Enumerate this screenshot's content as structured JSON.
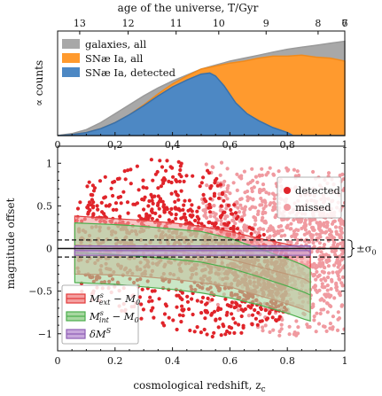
{
  "chart_data": [
    {
      "type": "area",
      "xlabel": "",
      "ylabel": "∝ counts",
      "top_axis_label": "age of the universe, T/Gyr",
      "top_ticks": [
        {
          "label": "13",
          "z": 0.04
        },
        {
          "label": "12",
          "z": 0.14
        },
        {
          "label": "11",
          "z": 0.26
        },
        {
          "label": "10",
          "z": 0.39
        },
        {
          "label": "9",
          "z": 0.57
        },
        {
          "label": "8",
          "z": 0.83
        },
        {
          "label": "7",
          "z": 1.21
        },
        {
          "label": "6",
          "z": 1.9
        }
      ],
      "xlim": [
        0,
        1
      ],
      "x_ticks": [
        0,
        0.2,
        0.4,
        0.6,
        0.8,
        1
      ],
      "x_tick_labels": [
        "0",
        "0.2",
        "0.4",
        "0.6",
        "0.8",
        "1"
      ],
      "legend_position": "top-left",
      "series": [
        {
          "name": "galaxies, all",
          "color": "#a8a8a8",
          "x": [
            0,
            0.05,
            0.1,
            0.15,
            0.2,
            0.25,
            0.3,
            0.35,
            0.4,
            0.45,
            0.5,
            0.55,
            0.6,
            0.65,
            0.7,
            0.75,
            0.8,
            0.85,
            0.9,
            0.95,
            1.0
          ],
          "y": [
            0.0,
            0.02,
            0.06,
            0.13,
            0.22,
            0.31,
            0.4,
            0.48,
            0.55,
            0.61,
            0.67,
            0.71,
            0.75,
            0.78,
            0.81,
            0.84,
            0.87,
            0.89,
            0.91,
            0.93,
            0.95
          ]
        },
        {
          "name": "SNæ Ia, all",
          "color": "#ff9a2e",
          "x": [
            0,
            0.05,
            0.1,
            0.15,
            0.2,
            0.25,
            0.3,
            0.35,
            0.4,
            0.45,
            0.5,
            0.55,
            0.6,
            0.65,
            0.7,
            0.75,
            0.8,
            0.85,
            0.9,
            0.95,
            1.0
          ],
          "y": [
            0.0,
            0.01,
            0.03,
            0.07,
            0.13,
            0.21,
            0.31,
            0.42,
            0.52,
            0.6,
            0.67,
            0.7,
            0.73,
            0.75,
            0.78,
            0.8,
            0.8,
            0.81,
            0.79,
            0.78,
            0.75
          ]
        },
        {
          "name": "SNæ Ia, detected",
          "color": "#4d88c4",
          "x": [
            0,
            0.05,
            0.1,
            0.15,
            0.2,
            0.25,
            0.3,
            0.35,
            0.4,
            0.45,
            0.5,
            0.53,
            0.55,
            0.58,
            0.62,
            0.66,
            0.7,
            0.75,
            0.8,
            0.82,
            0.85,
            0.9,
            1.0
          ],
          "y": [
            0.0,
            0.01,
            0.03,
            0.07,
            0.13,
            0.21,
            0.3,
            0.4,
            0.49,
            0.56,
            0.62,
            0.63,
            0.6,
            0.5,
            0.33,
            0.22,
            0.15,
            0.08,
            0.03,
            0.0,
            0.0,
            0.0,
            0.0
          ]
        }
      ]
    },
    {
      "type": "scatter",
      "xlabel": "cosmological redshift, z",
      "xlabel_sub": "c",
      "ylabel": "magnitude offset",
      "xlim": [
        0,
        1
      ],
      "ylim": [
        -1.2,
        1.2
      ],
      "x_ticks": [
        0,
        0.2,
        0.4,
        0.6,
        0.8,
        1
      ],
      "x_tick_labels": [
        "0",
        "0.2",
        "0.4",
        "0.6",
        "0.8",
        "1"
      ],
      "y_ticks": [
        -1,
        -0.5,
        0,
        0.5,
        1
      ],
      "y_tick_labels": [
        "−1",
        "−0.5",
        "0",
        "0.5",
        "1"
      ],
      "sigma_label": "±σ",
      "sigma_sub": "0",
      "sigma_value": 0.1,
      "legend_points_position": "top-right",
      "legend_bands_position": "bottom-left",
      "point_series": [
        {
          "name": "detected",
          "color": "#e0242a"
        },
        {
          "name": "missed",
          "color": "#f09aa0"
        }
      ],
      "point_envelope": {
        "detected": {
          "z": [
            0.05,
            0.1,
            0.2,
            0.3,
            0.4,
            0.5,
            0.55,
            0.6,
            0.65,
            0.7,
            0.75,
            0.8
          ],
          "upper": [
            0.45,
            0.8,
            0.95,
            1.05,
            1.05,
            1.0,
            0.85,
            0.6,
            0.35,
            0.2,
            0.1,
            0.0
          ],
          "lower": [
            -0.4,
            -0.6,
            -0.75,
            -0.85,
            -0.95,
            -1.0,
            -1.05,
            -1.05,
            -1.0,
            -0.95,
            -0.9,
            -0.8
          ]
        },
        "missed": {
          "z": [
            0.5,
            0.6,
            0.7,
            0.8,
            0.9,
            1.0
          ],
          "upper": [
            1.05,
            1.0,
            0.95,
            0.95,
            0.9,
            0.9
          ],
          "lower": [
            -0.6,
            -0.75,
            -0.95,
            -1.05,
            -1.0,
            -0.95
          ]
        }
      },
      "band_series": [
        {
          "name": "M_ext - M_0",
          "color": "#e23a3a",
          "fill": "#f4a0a0",
          "z": [
            0.06,
            0.2,
            0.3,
            0.4,
            0.5,
            0.6,
            0.7,
            0.8,
            0.86,
            0.88
          ],
          "upper": [
            0.38,
            0.35,
            0.33,
            0.3,
            0.26,
            0.2,
            0.12,
            0.05,
            0.0,
            -0.05
          ],
          "lower": [
            -0.3,
            -0.31,
            -0.33,
            -0.36,
            -0.4,
            -0.45,
            -0.55,
            -0.65,
            -0.72,
            -0.75
          ]
        },
        {
          "name": "M_int - M_0",
          "color": "#4cae4c",
          "fill": "#a7d7a0",
          "z": [
            0.06,
            0.2,
            0.3,
            0.4,
            0.5,
            0.6,
            0.7,
            0.8,
            0.86,
            0.88
          ],
          "upper": [
            0.3,
            0.28,
            0.26,
            0.23,
            0.2,
            0.12,
            0.0,
            -0.12,
            -0.2,
            -0.24
          ],
          "lower": [
            -0.4,
            -0.42,
            -0.45,
            -0.48,
            -0.52,
            -0.58,
            -0.66,
            -0.76,
            -0.83,
            -0.85
          ]
        },
        {
          "name": "δM",
          "color": "#8e5fb5",
          "fill": "#c8a8dc",
          "z": [
            0.06,
            0.3,
            0.5,
            0.7,
            0.88
          ],
          "upper": [
            0.03,
            0.03,
            0.03,
            0.03,
            0.03
          ],
          "lower": [
            -0.08,
            -0.08,
            -0.08,
            -0.08,
            -0.08
          ]
        }
      ],
      "band_legend": [
        {
          "main": "M",
          "sup": "s",
          "sub": "ext",
          "rest": " − M",
          "rest_sub": "0"
        },
        {
          "main": "M",
          "sup": "s",
          "sub": "int",
          "rest": " − M",
          "rest_sub": "0"
        },
        {
          "main": "δM",
          "sup": "S",
          "sub": "",
          "rest": "",
          "rest_sub": ""
        }
      ]
    }
  ]
}
